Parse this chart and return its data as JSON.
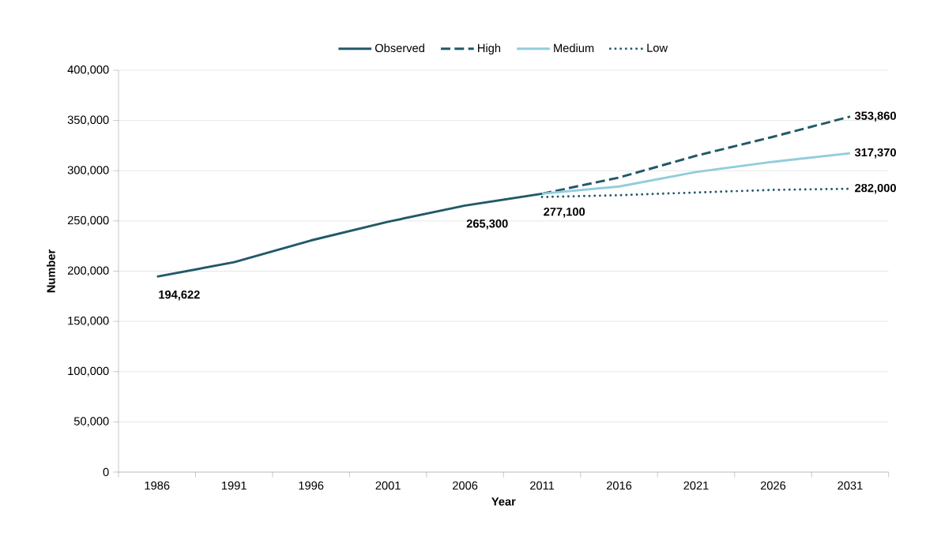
{
  "chart_data": {
    "type": "line",
    "xlabel": "Year",
    "ylabel": "Number",
    "categories": [
      "1986",
      "1991",
      "1996",
      "2001",
      "2006",
      "2011",
      "2016",
      "2021",
      "2026",
      "2031"
    ],
    "series": [
      {
        "name": "Observed",
        "color": "#215968",
        "line_style": "solid",
        "values": [
          194622,
          208900,
          230600,
          249200,
          265300,
          277100,
          null,
          null,
          null,
          null
        ],
        "value_labels": [
          "194,622",
          null,
          null,
          null,
          "265,300",
          "277,100",
          null,
          null,
          null,
          null
        ]
      },
      {
        "name": "High",
        "color": "#215968",
        "line_style": "dashed",
        "values": [
          null,
          null,
          null,
          null,
          null,
          277100,
          293200,
          314900,
          333800,
          353860
        ],
        "value_labels": [
          null,
          null,
          null,
          null,
          null,
          null,
          null,
          null,
          null,
          "353,860"
        ]
      },
      {
        "name": "Medium",
        "color": "#92cddc",
        "line_style": "solid",
        "values": [
          null,
          null,
          null,
          null,
          null,
          277100,
          284300,
          298700,
          308900,
          317370
        ],
        "value_labels": [
          null,
          null,
          null,
          null,
          null,
          null,
          null,
          null,
          null,
          "317,370"
        ]
      },
      {
        "name": "Low",
        "color": "#215968",
        "line_style": "dotted",
        "values": [
          null,
          null,
          null,
          null,
          null,
          273800,
          275600,
          278300,
          280900,
          282000
        ],
        "value_labels": [
          null,
          null,
          null,
          null,
          null,
          null,
          null,
          null,
          null,
          "282,000"
        ]
      }
    ],
    "ylim": [
      0,
      400000
    ],
    "yticks": [
      {
        "value": 0,
        "label": "0"
      },
      {
        "value": 50000,
        "label": "50,000"
      },
      {
        "value": 100000,
        "label": "100,000"
      },
      {
        "value": 150000,
        "label": "150,000"
      },
      {
        "value": 200000,
        "label": "200,000"
      },
      {
        "value": 250000,
        "label": "250,000"
      },
      {
        "value": 300000,
        "label": "300,000"
      },
      {
        "value": 350000,
        "label": "350,000"
      },
      {
        "value": 400000,
        "label": "400,000"
      }
    ],
    "grid": "y",
    "legend": "top",
    "marker": "none"
  }
}
